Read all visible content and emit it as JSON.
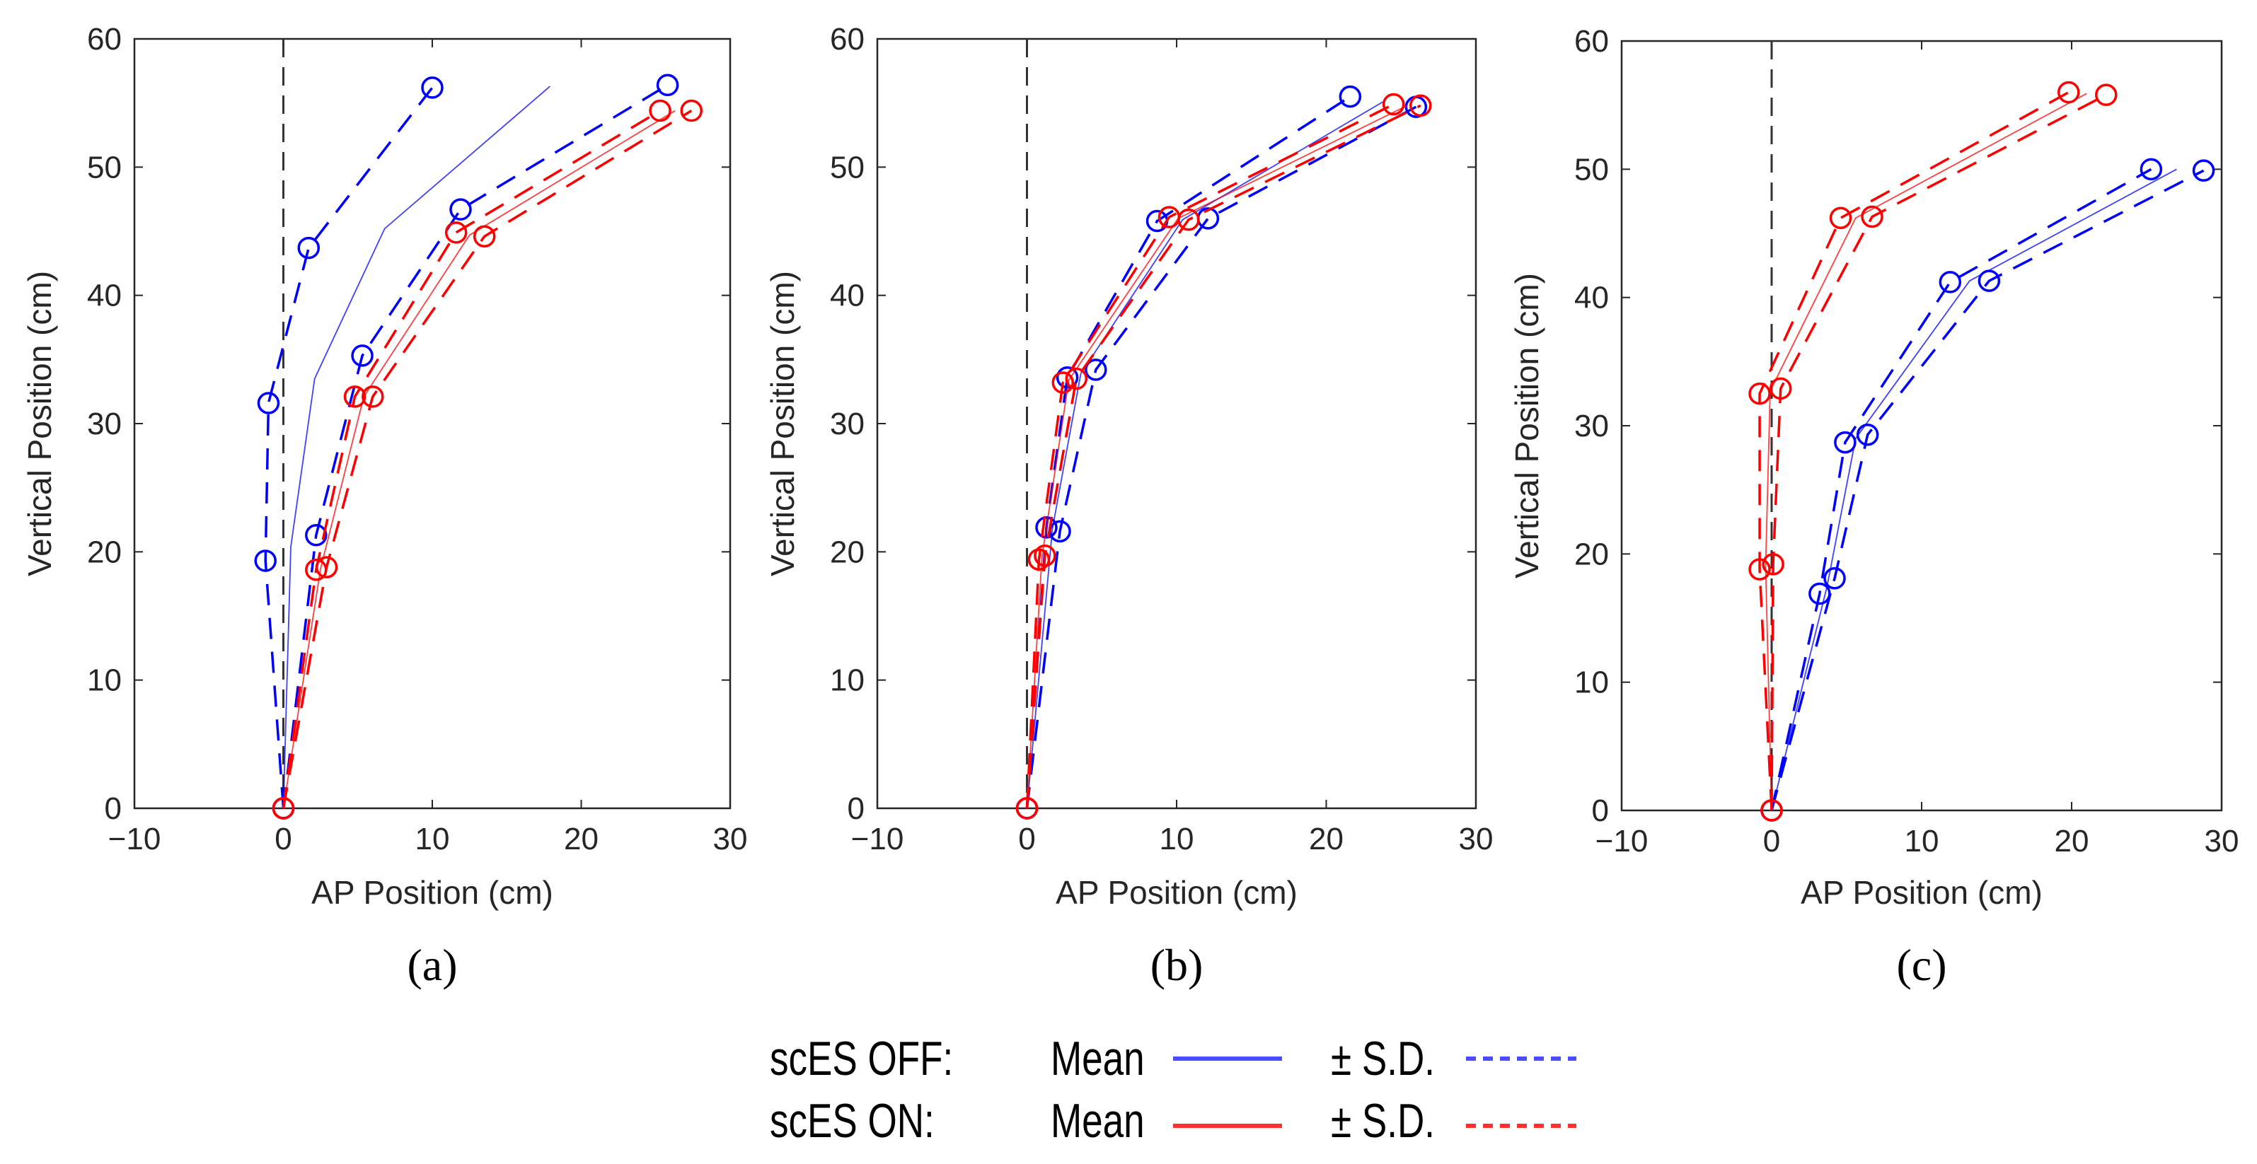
{
  "colors": {
    "off": "#0000ff",
    "on": "#ff0000",
    "axis": "#262626",
    "zero_line": "#333333"
  },
  "legend": {
    "rows": [
      {
        "group": "scES OFF:",
        "mean_label": "Mean",
        "sd_label": "± S.D.",
        "color": "#0000ff"
      },
      {
        "group": "scES ON:",
        "mean_label": "Mean",
        "sd_label": "± S.D.",
        "color": "#ff0000"
      }
    ]
  },
  "chart_data": [
    {
      "type": "line",
      "panel_label": "(a)",
      "xlabel": "AP Position (cm)",
      "ylabel": "Vertical Position (cm)",
      "xlim": [
        -10,
        30
      ],
      "ylim": [
        0,
        60
      ],
      "xticks": [
        -10,
        0,
        10,
        20,
        30
      ],
      "yticks": [
        0,
        10,
        20,
        30,
        40,
        50,
        60
      ],
      "series": [
        {
          "name": "scES OFF Mean",
          "style": "solid",
          "color": "#0000ff",
          "markers": false,
          "x": [
            0,
            0.5,
            2.1,
            6.8,
            17.9
          ],
          "y": [
            0,
            20.4,
            33.5,
            45.2,
            56.3
          ]
        },
        {
          "name": "scES OFF -S.D.",
          "style": "dashed",
          "color": "#0000ff",
          "markers": true,
          "x": [
            0,
            -1.2,
            -1.0,
            1.7,
            10.0
          ],
          "y": [
            0,
            19.3,
            31.6,
            43.7,
            56.2
          ]
        },
        {
          "name": "scES OFF +S.D.",
          "style": "dashed",
          "color": "#0000ff",
          "markers": true,
          "x": [
            0,
            2.2,
            5.3,
            11.9,
            25.8
          ],
          "y": [
            0,
            21.3,
            35.3,
            46.7,
            56.4
          ]
        },
        {
          "name": "scES ON Mean",
          "style": "solid",
          "color": "#ff0000",
          "markers": false,
          "x": [
            0,
            2.5,
            5.4,
            12.5,
            26.3
          ],
          "y": [
            0,
            18.7,
            32.1,
            44.7,
            54.4
          ]
        },
        {
          "name": "scES ON -S.D.",
          "style": "dashed",
          "color": "#ff0000",
          "markers": true,
          "x": [
            0,
            2.2,
            4.8,
            11.6,
            25.3
          ],
          "y": [
            0,
            18.6,
            32.1,
            44.9,
            54.4
          ]
        },
        {
          "name": "scES ON +S.D.",
          "style": "dashed",
          "color": "#ff0000",
          "markers": true,
          "x": [
            0,
            2.9,
            6.0,
            13.5,
            27.4
          ],
          "y": [
            0,
            18.8,
            32.1,
            44.6,
            54.4
          ]
        }
      ]
    },
    {
      "type": "line",
      "panel_label": "(b)",
      "xlabel": "AP Position (cm)",
      "ylabel": "Vertical Position (cm)",
      "xlim": [
        -10,
        30
      ],
      "ylim": [
        0,
        60
      ],
      "xticks": [
        -10,
        0,
        10,
        20,
        30
      ],
      "yticks": [
        0,
        10,
        20,
        30,
        40,
        50,
        60
      ],
      "series": [
        {
          "name": "scES OFF Mean",
          "style": "solid",
          "color": "#0000ff",
          "markers": false,
          "x": [
            0,
            1.7,
            3.6,
            10.4,
            23.8
          ],
          "y": [
            0,
            21.8,
            33.9,
            45.9,
            55.1
          ]
        },
        {
          "name": "scES OFF -S.D.",
          "style": "dashed",
          "color": "#0000ff",
          "markers": true,
          "x": [
            0,
            1.3,
            2.7,
            8.7,
            21.6
          ],
          "y": [
            0,
            21.9,
            33.6,
            45.8,
            55.5
          ]
        },
        {
          "name": "scES OFF +S.D.",
          "style": "dashed",
          "color": "#0000ff",
          "markers": true,
          "x": [
            0,
            2.2,
            4.6,
            12.1,
            26.0
          ],
          "y": [
            0,
            21.6,
            34.2,
            46.0,
            54.7
          ]
        },
        {
          "name": "scES ON Mean",
          "style": "solid",
          "color": "#ff0000",
          "markers": false,
          "x": [
            0,
            1.0,
            2.8,
            10.1,
            25.4
          ],
          "y": [
            0,
            19.6,
            33.4,
            46.0,
            54.8
          ]
        },
        {
          "name": "scES ON -S.D.",
          "style": "dashed",
          "color": "#ff0000",
          "markers": true,
          "x": [
            0,
            0.8,
            2.4,
            9.5,
            24.5
          ],
          "y": [
            0,
            19.4,
            33.2,
            46.1,
            54.9
          ]
        },
        {
          "name": "scES ON +S.D.",
          "style": "dashed",
          "color": "#ff0000",
          "markers": true,
          "x": [
            0,
            1.2,
            3.3,
            10.8,
            26.3
          ],
          "y": [
            0,
            19.7,
            33.5,
            45.9,
            54.8
          ]
        }
      ]
    },
    {
      "type": "line",
      "panel_label": "(c)",
      "xlabel": "AP Position (cm)",
      "ylabel": "Vertical Position (cm)",
      "xlim": [
        -10,
        30
      ],
      "ylim": [
        0,
        60
      ],
      "xticks": [
        -10,
        0,
        10,
        20,
        30
      ],
      "yticks": [
        0,
        10,
        20,
        30,
        40,
        50,
        60
      ],
      "series": [
        {
          "name": "scES OFF Mean",
          "style": "solid",
          "color": "#0000ff",
          "markers": false,
          "x": [
            0,
            3.7,
            5.6,
            13.2,
            27.0
          ],
          "y": [
            0,
            17.5,
            29.0,
            41.3,
            50.0
          ]
        },
        {
          "name": "scES OFF -S.D.",
          "style": "dashed",
          "color": "#0000ff",
          "markers": true,
          "x": [
            0,
            3.2,
            4.9,
            11.9,
            25.3
          ],
          "y": [
            0,
            16.9,
            28.7,
            41.2,
            50.0
          ]
        },
        {
          "name": "scES OFF +S.D.",
          "style": "dashed",
          "color": "#0000ff",
          "markers": true,
          "x": [
            0,
            4.2,
            6.4,
            14.5,
            28.8
          ],
          "y": [
            0,
            18.1,
            29.3,
            41.3,
            49.9
          ]
        },
        {
          "name": "scES ON Mean",
          "style": "solid",
          "color": "#ff0000",
          "markers": false,
          "x": [
            0,
            -0.4,
            -0.1,
            5.6,
            21.0
          ],
          "y": [
            0,
            19.0,
            32.7,
            46.2,
            55.9
          ]
        },
        {
          "name": "scES ON -S.D.",
          "style": "dashed",
          "color": "#ff0000",
          "markers": true,
          "x": [
            0,
            -0.8,
            -0.8,
            4.6,
            19.8
          ],
          "y": [
            0,
            18.8,
            32.5,
            46.2,
            56.0
          ]
        },
        {
          "name": "scES ON +S.D.",
          "style": "dashed",
          "color": "#ff0000",
          "markers": true,
          "x": [
            0,
            0.1,
            0.6,
            6.7,
            22.3
          ],
          "y": [
            0,
            19.2,
            32.9,
            46.3,
            55.8
          ]
        }
      ]
    }
  ]
}
